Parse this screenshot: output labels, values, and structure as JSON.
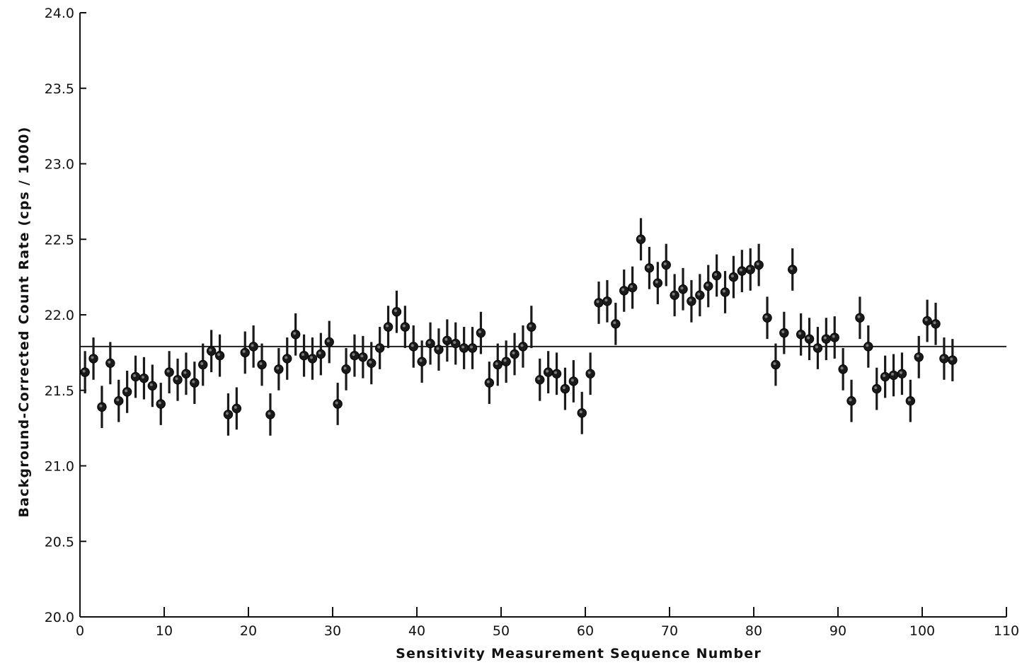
{
  "chart_data": {
    "type": "scatter",
    "title": "",
    "xlabel": "Sensitivity Measurement Sequence Number",
    "ylabel": "Background-Corrected Count Rate (cps / 1000)",
    "xlim": [
      0,
      110
    ],
    "ylim": [
      20.0,
      24.0
    ],
    "x_ticks": [
      0,
      10,
      20,
      30,
      40,
      50,
      60,
      70,
      80,
      90,
      100,
      110
    ],
    "x_tick_labels": [
      "0",
      "10",
      "20",
      "30",
      "40",
      "50",
      "60",
      "70",
      "80",
      "90",
      "100",
      "110"
    ],
    "y_ticks": [
      20.0,
      20.5,
      21.0,
      21.5,
      22.0,
      22.5,
      23.0,
      23.5,
      24.0
    ],
    "y_tick_labels": [
      "20.0",
      "20.5",
      "21.0",
      "21.5",
      "22.0",
      "22.5",
      "23.0",
      "23.5",
      "24.0"
    ],
    "grid": false,
    "reference_line": {
      "y": 21.79
    },
    "error_bar_halfwidth": 0.14,
    "colors": {
      "marker": "#1a1a1a",
      "line": "#111111"
    },
    "series": [
      {
        "x": [
          0,
          1,
          2,
          3,
          4,
          5,
          6,
          7,
          8,
          9,
          10,
          11,
          12,
          13,
          14,
          15,
          16,
          17,
          18,
          19,
          20,
          21,
          22,
          23,
          24,
          25,
          26,
          27,
          28,
          29,
          30,
          31,
          32,
          33,
          34,
          35,
          36,
          37,
          38,
          39,
          40,
          41,
          42,
          43,
          44,
          45,
          46,
          47,
          48,
          49,
          50,
          51,
          52,
          53,
          54,
          55,
          56,
          57,
          58,
          59,
          60,
          61,
          62,
          63,
          64,
          65,
          66,
          67,
          68,
          69,
          70,
          71,
          72,
          73,
          74,
          75,
          76,
          77,
          78,
          79,
          80,
          81,
          82,
          83,
          84,
          85,
          86,
          87,
          88,
          89,
          90,
          91,
          92,
          93,
          94,
          95,
          96,
          97,
          98,
          99,
          100,
          101,
          102,
          103
        ],
        "y": [
          21.62,
          21.71,
          21.39,
          21.68,
          21.43,
          21.49,
          21.59,
          21.58,
          21.53,
          21.41,
          21.62,
          21.57,
          21.61,
          21.55,
          21.67,
          21.76,
          21.73,
          21.34,
          21.38,
          21.75,
          21.79,
          21.67,
          21.34,
          21.64,
          21.71,
          21.87,
          21.73,
          21.71,
          21.74,
          21.82,
          21.41,
          21.64,
          21.73,
          21.72,
          21.68,
          21.78,
          21.92,
          22.02,
          21.92,
          21.79,
          21.69,
          21.81,
          21.77,
          21.83,
          21.81,
          21.78,
          21.78,
          21.88,
          21.55,
          21.67,
          21.69,
          21.74,
          21.79,
          21.92,
          21.57,
          21.62,
          21.61,
          21.51,
          21.56,
          21.35,
          21.61,
          22.08,
          22.09,
          21.94,
          22.16,
          22.18,
          22.5,
          22.31,
          22.21,
          22.33,
          22.13,
          22.17,
          22.09,
          22.13,
          22.19,
          22.26,
          22.15,
          22.25,
          22.29,
          22.3,
          22.33,
          21.98,
          21.67,
          21.88,
          22.3,
          21.87,
          21.84,
          21.78,
          21.84,
          21.85,
          21.64,
          21.43,
          21.98,
          21.79,
          21.51,
          21.59,
          21.6,
          21.61,
          21.43,
          21.72,
          21.96,
          21.94,
          21.71,
          21.7
        ]
      }
    ]
  }
}
